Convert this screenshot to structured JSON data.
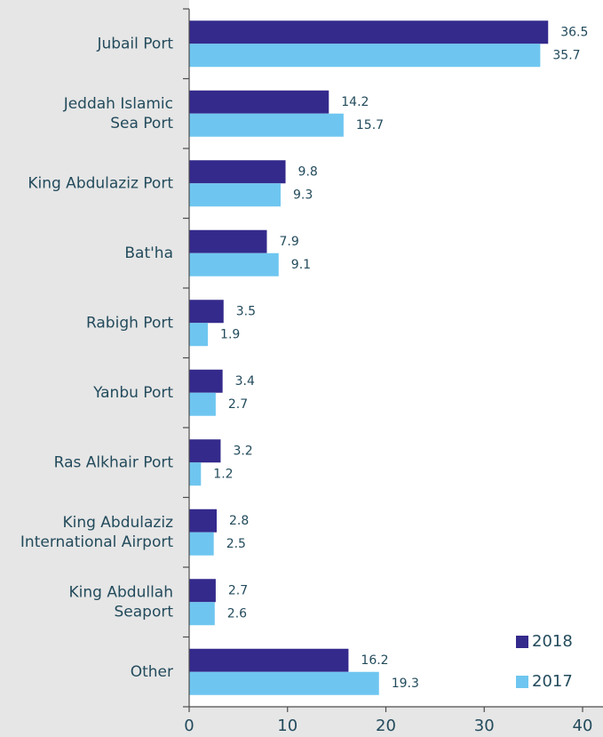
{
  "chart_data": {
    "type": "bar",
    "orientation": "horizontal",
    "categories": [
      "Jubail Port",
      "Jeddah Islamic\nSea Port",
      "King Abdulaziz Port",
      "Bat'ha",
      "Rabigh Port",
      "Yanbu Port",
      "Ras Alkhair Port",
      "King Abdulaziz\nInternational Airport",
      "King Abdullah\nSeaport",
      "Other"
    ],
    "series": [
      {
        "name": "2018",
        "color": "#342a8c",
        "values": [
          36.5,
          14.2,
          9.8,
          7.9,
          3.5,
          3.4,
          3.2,
          2.8,
          2.7,
          16.2
        ]
      },
      {
        "name": "2017",
        "color": "#6ec6f0",
        "values": [
          35.7,
          15.7,
          9.3,
          9.1,
          1.9,
          2.7,
          1.2,
          2.5,
          2.6,
          19.3
        ]
      }
    ],
    "xlim": [
      0,
      40
    ],
    "xticks": [
      0,
      10,
      20,
      30,
      40
    ],
    "grid": false,
    "legend": "lower right"
  }
}
